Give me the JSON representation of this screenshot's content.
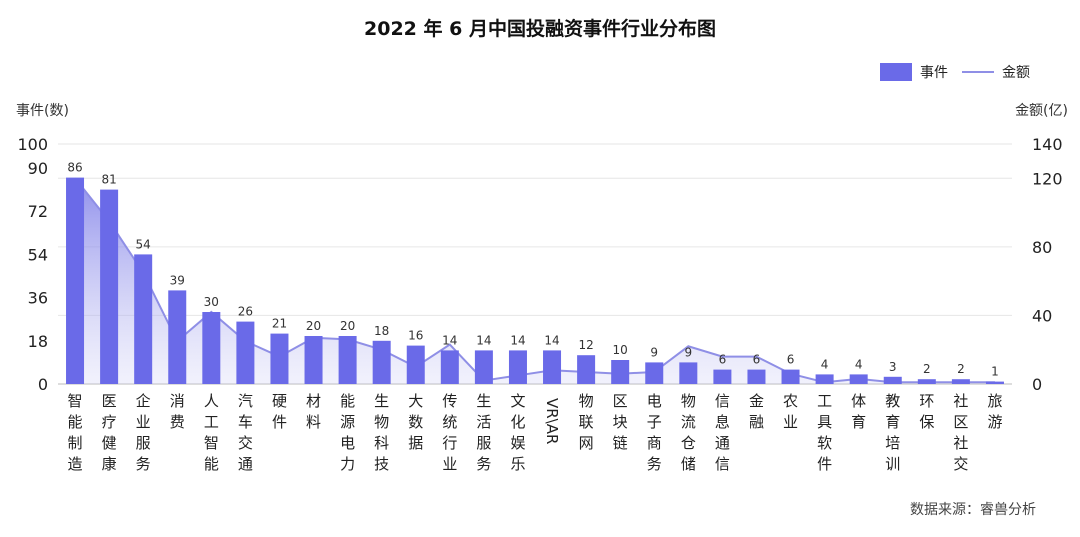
{
  "chart_data": {
    "type": "bar",
    "title": "2022 年 6 月中国投融资事件行业分布图",
    "ylabel": "事件(数)",
    "y2label": "金额(亿)",
    "source": "数据来源：睿兽分析",
    "legend": {
      "placement": "top-right"
    },
    "ylim": [
      0,
      100
    ],
    "yticks": [
      0,
      18,
      36,
      54,
      72,
      90,
      100
    ],
    "y2lim": [
      0,
      140
    ],
    "y2ticks": [
      0,
      40,
      80,
      120,
      140
    ],
    "grid": true,
    "categories": [
      "智能制造",
      "医疗健康",
      "企业服务",
      "消费",
      "人工智能",
      "汽车交通",
      "硬件",
      "材料",
      "能源电力",
      "生物科技",
      "大数据",
      "传统行业",
      "生活服务",
      "文化娱乐",
      "VR\\AR",
      "物联网",
      "区块链",
      "电子商务",
      "物流仓储",
      "信息通信",
      "金融",
      "农业",
      "工具软件",
      "体育",
      "教育培训",
      "环保",
      "社区社交",
      "旅游"
    ],
    "series": [
      {
        "name": "事件",
        "type": "bar",
        "axis": "left",
        "color": "#6a6ae8",
        "values": [
          86,
          81,
          54,
          39,
          30,
          26,
          21,
          20,
          20,
          18,
          16,
          14,
          14,
          14,
          14,
          12,
          10,
          9,
          9,
          6,
          6,
          6,
          4,
          4,
          3,
          2,
          2,
          1
        ]
      },
      {
        "name": "金额",
        "type": "area",
        "axis": "right",
        "color": "#8f8fe6",
        "values": [
          120,
          95,
          65,
          25,
          42,
          25,
          16,
          27,
          26,
          20,
          10,
          23,
          2,
          5,
          8,
          7,
          6,
          7,
          22,
          16,
          16,
          6,
          1,
          3,
          1,
          1,
          1,
          1
        ]
      }
    ]
  }
}
